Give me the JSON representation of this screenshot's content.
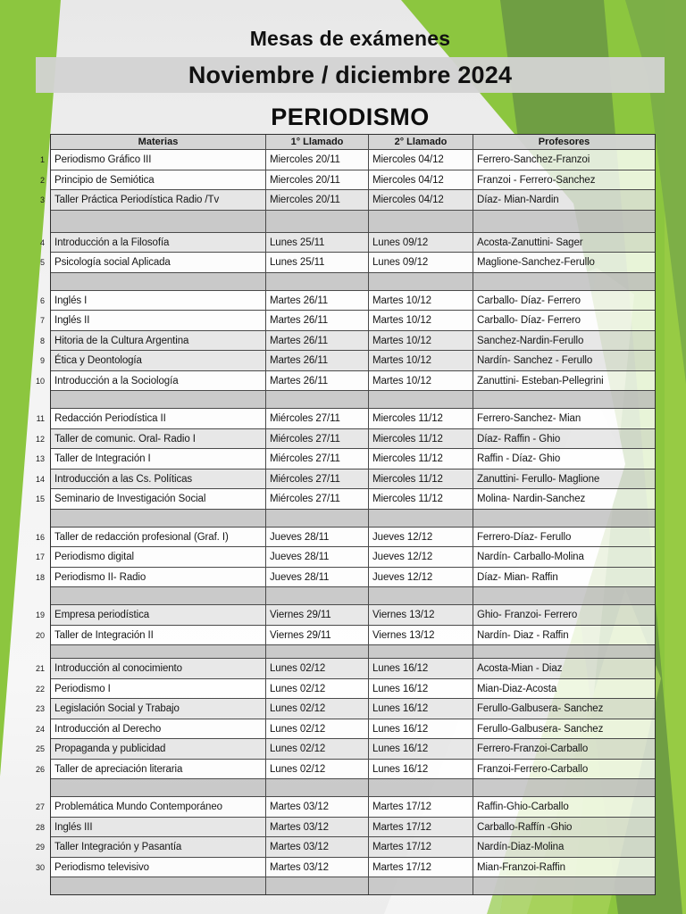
{
  "page": {
    "title": "Mesas de exámenes",
    "banner": "Noviembre / diciembre 2024",
    "section": "PERIODISMO"
  },
  "colors": {
    "lime_green": "#8CC63F",
    "olive_green": "#6F9E43",
    "banner_gray": "#D3D3D3",
    "header_gray": "#D4D4D4",
    "spacer_gray": "#C6C6C6",
    "text": "#161616"
  },
  "table": {
    "headers": [
      "Materias",
      "1° Llamado",
      "2° Llamado",
      "Profesores"
    ],
    "groups": [
      {
        "rows": [
          {
            "n": 1,
            "shade": false,
            "materia": "Periodismo Gráfico III",
            "l1": "Miercoles 20/11",
            "l2": "Miercoles 04/12",
            "prof": "Ferrero-Sanchez-Franzoi"
          },
          {
            "n": 2,
            "shade": false,
            "materia": "Principio de Semiótica",
            "l1": "Miercoles 20/11",
            "l2": "Miercoles 04/12",
            "prof": "Franzoi - Ferrero-Sanchez"
          },
          {
            "n": 3,
            "shade": true,
            "materia": "Taller  Práctica Periodística Radio /Tv",
            "l1": "Miercoles 20/11",
            "l2": "Miercoles 04/12",
            "prof": "Díaz- Mian-Nardin"
          }
        ]
      },
      {
        "rows": [
          {
            "n": 4,
            "shade": true,
            "materia": "Introducción  a la Filosofía",
            "l1": "Lunes 25/11",
            "l2": "Lunes 09/12",
            "prof": "Acosta-Zanuttini-  Sager"
          },
          {
            "n": 5,
            "shade": false,
            "materia": "Psicología social Aplicada",
            "l1": "Lunes 25/11",
            "l2": "Lunes 09/12",
            "prof": "Maglione-Sanchez-Ferullo"
          }
        ]
      },
      {
        "rows": [
          {
            "n": 6,
            "shade": false,
            "materia": "Inglés  I",
            "l1": "Martes 26/11",
            "l2": "Martes 10/12",
            "prof": "Carballo- Díaz-  Ferrero"
          },
          {
            "n": 7,
            "shade": false,
            "materia": "Inglés  II",
            "l1": "Martes 26/11",
            "l2": "Martes 10/12",
            "prof": "Carballo- Díaz-  Ferrero"
          },
          {
            "n": 8,
            "shade": true,
            "materia": "Hitoria de la Cultura  Argentina",
            "l1": "Martes 26/11",
            "l2": "Martes 10/12",
            "prof": "Sanchez-Nardin-Ferullo"
          },
          {
            "n": 9,
            "shade": true,
            "materia": "Ética y Deontología",
            "l1": "Martes 26/11",
            "l2": "Martes 10/12",
            "prof": "Nardín-  Sanchez - Ferullo"
          },
          {
            "n": 10,
            "shade": false,
            "materia": "Introducción  a la Sociología",
            "l1": "Martes 26/11",
            "l2": "Martes 10/12",
            "prof": "Zanuttini-  Esteban-Pellegrini"
          }
        ]
      },
      {
        "rows": [
          {
            "n": 11,
            "shade": false,
            "materia": "Redacción Periodística II",
            "l1": "Miércoles 27/11",
            "l2": "Miercoles 11/12",
            "prof": "Ferrero-Sanchez- Mian"
          },
          {
            "n": 12,
            "shade": true,
            "materia": "Taller  de comunic.  Oral-  Radio I",
            "l1": "Miércoles 27/11",
            "l2": "Miercoles 11/12",
            "prof": "Díaz-  Raffin - Ghio"
          },
          {
            "n": 13,
            "shade": false,
            "materia": "Taller  de Integración  I",
            "l1": "Miércoles 27/11",
            "l2": "Miercoles 11/12",
            "prof": "Raffin - Díaz-  Ghio"
          },
          {
            "n": 14,
            "shade": true,
            "materia": "Introducción  a las Cs. Políticas",
            "l1": "Miércoles 27/11",
            "l2": "Miercoles 11/12",
            "prof": "Zanuttini-  Ferullo-  Maglione"
          },
          {
            "n": 15,
            "shade": false,
            "materia": "Seminario de Investigación  Social",
            "l1": "Miércoles 27/11",
            "l2": "Miercoles 11/12",
            "prof": "Molina-  Nardin-Sanchez"
          }
        ]
      },
      {
        "rows": [
          {
            "n": 16,
            "shade": false,
            "materia": "Taller  de redacción profesional  (Graf.  I)",
            "l1": "Jueves 28/11",
            "l2": "Jueves 12/12",
            "prof": "Ferrero-Díaz-  Ferullo"
          },
          {
            "n": 17,
            "shade": false,
            "materia": "Periodismo digital",
            "l1": "Jueves 28/11",
            "l2": "Jueves 12/12",
            "prof": "Nardín-  Carballo-Molina"
          },
          {
            "n": 18,
            "shade": false,
            "materia": "Periodismo II-  Radio",
            "l1": "Jueves 28/11",
            "l2": "Jueves 12/12",
            "prof": "Díaz-  Mian-  Raffin"
          }
        ]
      },
      {
        "rows": [
          {
            "n": 19,
            "shade": true,
            "materia": "Empresa periodística",
            "l1": "Viernes 29/11",
            "l2": "Viernes 13/12",
            "prof": "Ghio- Franzoi-  Ferrero"
          },
          {
            "n": 20,
            "shade": false,
            "materia": "Taller  de Integración  II",
            "l1": "Viernes 29/11",
            "l2": "Viernes 13/12",
            "prof": "Nardín-  Diaz - Raffin"
          }
        ]
      },
      {
        "rows": [
          {
            "n": 21,
            "shade": true,
            "materia": "Introducción  al conocimiento",
            "l1": "Lunes 02/12",
            "l2": "Lunes 16/12",
            "prof": "Acosta-Mian - Diaz"
          },
          {
            "n": 22,
            "shade": false,
            "materia": "Periodismo I",
            "l1": "Lunes 02/12",
            "l2": "Lunes 16/12",
            "prof": "Mian-Diaz-Acosta"
          },
          {
            "n": 23,
            "shade": true,
            "materia": "Legislación Social y Trabajo",
            "l1": "Lunes 02/12",
            "l2": "Lunes 16/12",
            "prof": "Ferullo-Galbusera-  Sanchez"
          },
          {
            "n": 24,
            "shade": false,
            "materia": "Introducción  al Derecho",
            "l1": "Lunes 02/12",
            "l2": "Lunes 16/12",
            "prof": "Ferullo-Galbusera-  Sanchez"
          },
          {
            "n": 25,
            "shade": true,
            "materia": "Propaganda y publicidad",
            "l1": "Lunes 02/12",
            "l2": "Lunes 16/12",
            "prof": "Ferrero-Franzoi-Carballo"
          },
          {
            "n": 26,
            "shade": false,
            "materia": "Taller  de apreciación literaria",
            "l1": "Lunes 02/12",
            "l2": "Lunes 16/12",
            "prof": "Franzoi-Ferrero-Carballo"
          }
        ]
      },
      {
        "rows": [
          {
            "n": 27,
            "shade": false,
            "materia": "Problemática Mundo  Contemporáneo",
            "l1": "Martes 03/12",
            "l2": "Martes 17/12",
            "prof": "Raffin-Ghio-Carballo"
          },
          {
            "n": 28,
            "shade": true,
            "materia": "Inglés  III",
            "l1": "Martes 03/12",
            "l2": "Martes 17/12",
            "prof": "Carballo-Raffín -Ghio"
          },
          {
            "n": 29,
            "shade": true,
            "materia": "Taller  Integración  y Pasantía",
            "l1": "Martes 03/12",
            "l2": "Martes 17/12",
            "prof": "Nardín-Diaz-Molina"
          },
          {
            "n": 30,
            "shade": false,
            "materia": "Periodismo  televisivo",
            "l1": "Martes 03/12",
            "l2": "Martes 17/12",
            "prof": "Mian-Franzoi-Raffin"
          }
        ]
      }
    ]
  }
}
